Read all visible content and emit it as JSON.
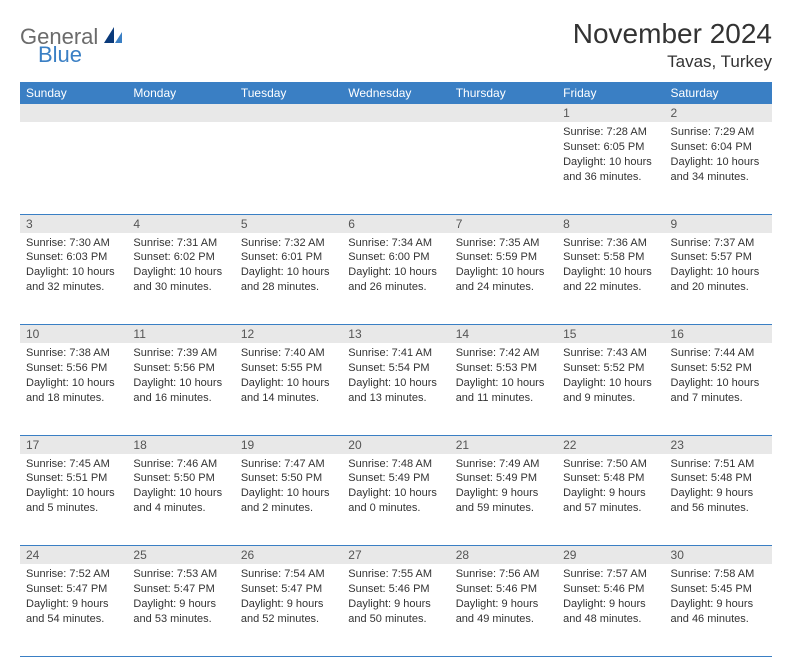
{
  "logo": {
    "part1": "General",
    "part2": "Blue"
  },
  "title": "November 2024",
  "location": "Tavas, Turkey",
  "colors": {
    "header_bg": "#3a7fc4",
    "header_text": "#ffffff",
    "daynum_bg": "#e8e8e8",
    "border": "#3a7fc4",
    "text": "#333333",
    "logo_gray": "#6b6b6b",
    "logo_blue": "#3a7fc4",
    "page_bg": "#ffffff"
  },
  "typography": {
    "title_fontsize": 28,
    "location_fontsize": 17,
    "dayhead_fontsize": 12,
    "cell_fontsize": 11
  },
  "dayNames": [
    "Sunday",
    "Monday",
    "Tuesday",
    "Wednesday",
    "Thursday",
    "Friday",
    "Saturday"
  ],
  "weeks": [
    {
      "nums": [
        "",
        "",
        "",
        "",
        "",
        "1",
        "2"
      ],
      "cells": [
        null,
        null,
        null,
        null,
        null,
        {
          "sunrise": "Sunrise: 7:28 AM",
          "sunset": "Sunset: 6:05 PM",
          "daylight": "Daylight: 10 hours and 36 minutes."
        },
        {
          "sunrise": "Sunrise: 7:29 AM",
          "sunset": "Sunset: 6:04 PM",
          "daylight": "Daylight: 10 hours and 34 minutes."
        }
      ]
    },
    {
      "nums": [
        "3",
        "4",
        "5",
        "6",
        "7",
        "8",
        "9"
      ],
      "cells": [
        {
          "sunrise": "Sunrise: 7:30 AM",
          "sunset": "Sunset: 6:03 PM",
          "daylight": "Daylight: 10 hours and 32 minutes."
        },
        {
          "sunrise": "Sunrise: 7:31 AM",
          "sunset": "Sunset: 6:02 PM",
          "daylight": "Daylight: 10 hours and 30 minutes."
        },
        {
          "sunrise": "Sunrise: 7:32 AM",
          "sunset": "Sunset: 6:01 PM",
          "daylight": "Daylight: 10 hours and 28 minutes."
        },
        {
          "sunrise": "Sunrise: 7:34 AM",
          "sunset": "Sunset: 6:00 PM",
          "daylight": "Daylight: 10 hours and 26 minutes."
        },
        {
          "sunrise": "Sunrise: 7:35 AM",
          "sunset": "Sunset: 5:59 PM",
          "daylight": "Daylight: 10 hours and 24 minutes."
        },
        {
          "sunrise": "Sunrise: 7:36 AM",
          "sunset": "Sunset: 5:58 PM",
          "daylight": "Daylight: 10 hours and 22 minutes."
        },
        {
          "sunrise": "Sunrise: 7:37 AM",
          "sunset": "Sunset: 5:57 PM",
          "daylight": "Daylight: 10 hours and 20 minutes."
        }
      ]
    },
    {
      "nums": [
        "10",
        "11",
        "12",
        "13",
        "14",
        "15",
        "16"
      ],
      "cells": [
        {
          "sunrise": "Sunrise: 7:38 AM",
          "sunset": "Sunset: 5:56 PM",
          "daylight": "Daylight: 10 hours and 18 minutes."
        },
        {
          "sunrise": "Sunrise: 7:39 AM",
          "sunset": "Sunset: 5:56 PM",
          "daylight": "Daylight: 10 hours and 16 minutes."
        },
        {
          "sunrise": "Sunrise: 7:40 AM",
          "sunset": "Sunset: 5:55 PM",
          "daylight": "Daylight: 10 hours and 14 minutes."
        },
        {
          "sunrise": "Sunrise: 7:41 AM",
          "sunset": "Sunset: 5:54 PM",
          "daylight": "Daylight: 10 hours and 13 minutes."
        },
        {
          "sunrise": "Sunrise: 7:42 AM",
          "sunset": "Sunset: 5:53 PM",
          "daylight": "Daylight: 10 hours and 11 minutes."
        },
        {
          "sunrise": "Sunrise: 7:43 AM",
          "sunset": "Sunset: 5:52 PM",
          "daylight": "Daylight: 10 hours and 9 minutes."
        },
        {
          "sunrise": "Sunrise: 7:44 AM",
          "sunset": "Sunset: 5:52 PM",
          "daylight": "Daylight: 10 hours and 7 minutes."
        }
      ]
    },
    {
      "nums": [
        "17",
        "18",
        "19",
        "20",
        "21",
        "22",
        "23"
      ],
      "cells": [
        {
          "sunrise": "Sunrise: 7:45 AM",
          "sunset": "Sunset: 5:51 PM",
          "daylight": "Daylight: 10 hours and 5 minutes."
        },
        {
          "sunrise": "Sunrise: 7:46 AM",
          "sunset": "Sunset: 5:50 PM",
          "daylight": "Daylight: 10 hours and 4 minutes."
        },
        {
          "sunrise": "Sunrise: 7:47 AM",
          "sunset": "Sunset: 5:50 PM",
          "daylight": "Daylight: 10 hours and 2 minutes."
        },
        {
          "sunrise": "Sunrise: 7:48 AM",
          "sunset": "Sunset: 5:49 PM",
          "daylight": "Daylight: 10 hours and 0 minutes."
        },
        {
          "sunrise": "Sunrise: 7:49 AM",
          "sunset": "Sunset: 5:49 PM",
          "daylight": "Daylight: 9 hours and 59 minutes."
        },
        {
          "sunrise": "Sunrise: 7:50 AM",
          "sunset": "Sunset: 5:48 PM",
          "daylight": "Daylight: 9 hours and 57 minutes."
        },
        {
          "sunrise": "Sunrise: 7:51 AM",
          "sunset": "Sunset: 5:48 PM",
          "daylight": "Daylight: 9 hours and 56 minutes."
        }
      ]
    },
    {
      "nums": [
        "24",
        "25",
        "26",
        "27",
        "28",
        "29",
        "30"
      ],
      "cells": [
        {
          "sunrise": "Sunrise: 7:52 AM",
          "sunset": "Sunset: 5:47 PM",
          "daylight": "Daylight: 9 hours and 54 minutes."
        },
        {
          "sunrise": "Sunrise: 7:53 AM",
          "sunset": "Sunset: 5:47 PM",
          "daylight": "Daylight: 9 hours and 53 minutes."
        },
        {
          "sunrise": "Sunrise: 7:54 AM",
          "sunset": "Sunset: 5:47 PM",
          "daylight": "Daylight: 9 hours and 52 minutes."
        },
        {
          "sunrise": "Sunrise: 7:55 AM",
          "sunset": "Sunset: 5:46 PM",
          "daylight": "Daylight: 9 hours and 50 minutes."
        },
        {
          "sunrise": "Sunrise: 7:56 AM",
          "sunset": "Sunset: 5:46 PM",
          "daylight": "Daylight: 9 hours and 49 minutes."
        },
        {
          "sunrise": "Sunrise: 7:57 AM",
          "sunset": "Sunset: 5:46 PM",
          "daylight": "Daylight: 9 hours and 48 minutes."
        },
        {
          "sunrise": "Sunrise: 7:58 AM",
          "sunset": "Sunset: 5:45 PM",
          "daylight": "Daylight: 9 hours and 46 minutes."
        }
      ]
    }
  ]
}
